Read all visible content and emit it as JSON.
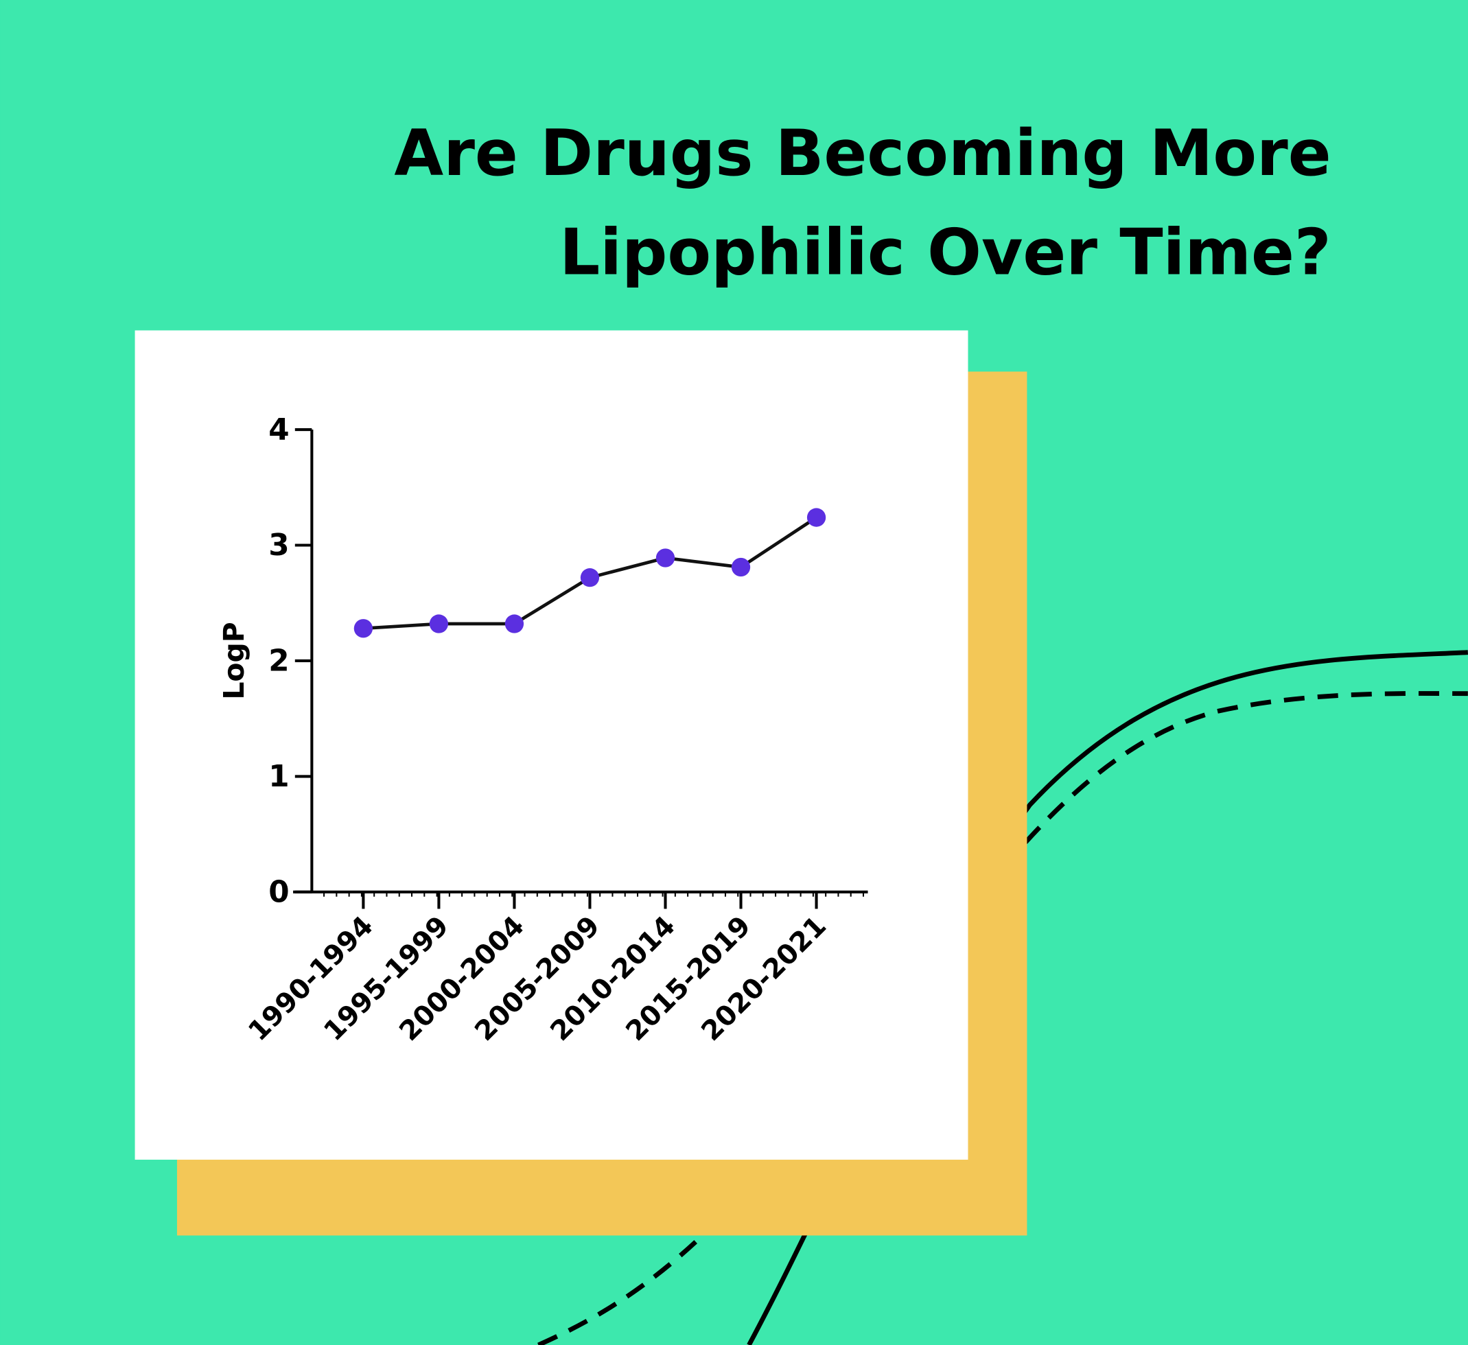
{
  "chart_data": {
    "type": "line",
    "title": [
      "Are Drugs Becoming More",
      "Lipophilic Over Time?"
    ],
    "y_label": "LogP",
    "categories": [
      "1990-1994",
      "1995-1999",
      "2000-2004",
      "2005-2009",
      "2010-2014",
      "2015-2019",
      "2020-2021"
    ],
    "values": [
      2.28,
      2.32,
      2.32,
      2.72,
      2.89,
      2.81,
      3.24
    ],
    "color": "#111111",
    "marker_color": "#5b2fe0",
    "ylim": [
      0,
      4
    ],
    "yticks": [
      0,
      1,
      2,
      3,
      4
    ],
    "grid": false
  }
}
